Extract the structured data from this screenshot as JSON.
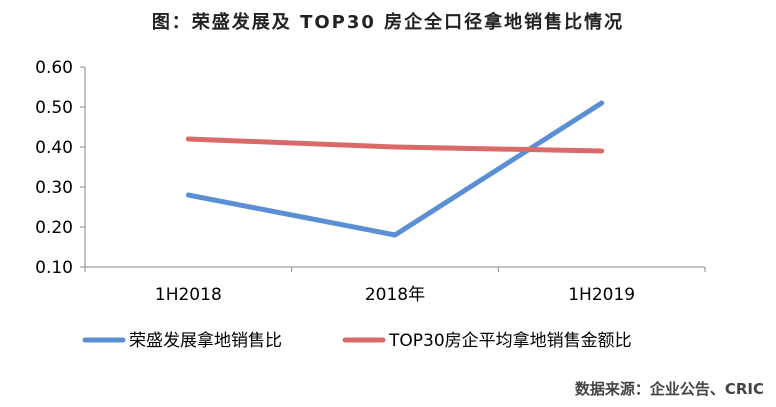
{
  "title": "图：荣盛发展及 TOP30 房企全口径拿地销售比情况",
  "source": "数据来源：企业公告、CRIC",
  "chart_data": {
    "type": "line",
    "categories": [
      "1H2018",
      "2018年",
      "1H2019"
    ],
    "series": [
      {
        "name": "荣盛发展拿地销售比",
        "color": "#5B8FD4",
        "values": [
          0.28,
          0.18,
          0.51
        ]
      },
      {
        "name": "TOP30房企平均拿地销售金额比",
        "color": "#D96A68",
        "values": [
          0.42,
          0.4,
          0.39
        ]
      }
    ],
    "yticks": [
      "0.10",
      "0.20",
      "0.30",
      "0.40",
      "0.50",
      "0.60"
    ],
    "ylim": [
      0.1,
      0.6
    ],
    "grid": false,
    "legend": "bottom"
  }
}
